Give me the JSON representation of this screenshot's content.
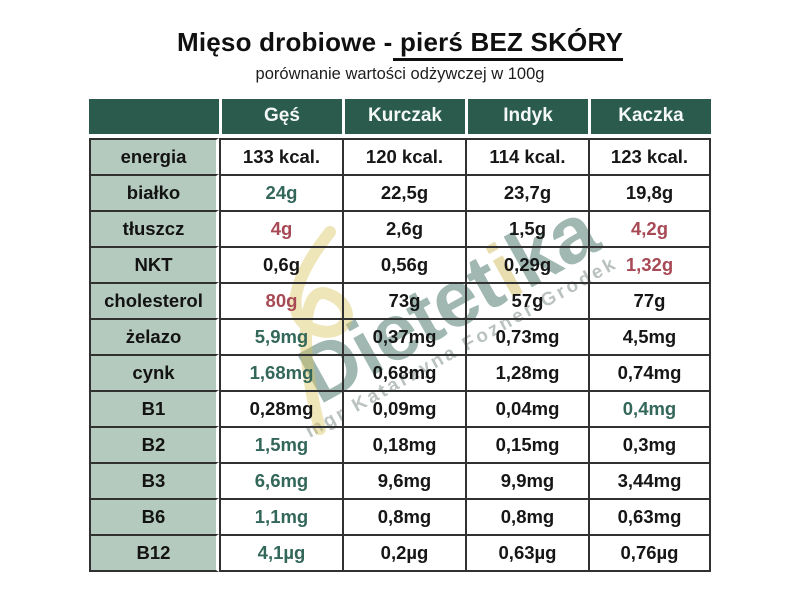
{
  "page": {
    "title_prefix": "Mięso drobiowe -",
    "title_underlined": " pierś BEZ SKÓRY",
    "subtitle": "porównanie wartości odżywczej w 100g"
  },
  "watermark": {
    "brand_part1": "Dietet",
    "brand_accent": "i",
    "brand_part2": "ka",
    "author": "mgr Katarzyna Fozner-Grodek"
  },
  "colors": {
    "header_bg": "#2a5b4d",
    "label_bg": "#b4cabe",
    "accent_green": "#33675a",
    "accent_red": "#a84a55",
    "border": "#313131",
    "watermark_teal": "#2f6355",
    "watermark_yellow": "#d8c25a"
  },
  "chart_data": {
    "type": "table",
    "title": "Mięso drobiowe - pierś BEZ SKÓRY",
    "subtitle": "porównanie wartości odżywczej w 100g",
    "columns": [
      "Gęś",
      "Kurczak",
      "Indyk",
      "Kaczka"
    ],
    "rows": [
      {
        "label": "energia",
        "values": [
          {
            "text": "133 kcal."
          },
          {
            "text": "120 kcal."
          },
          {
            "text": "114 kcal."
          },
          {
            "text": "123 kcal."
          }
        ]
      },
      {
        "label": "białko",
        "values": [
          {
            "text": "24g",
            "color": "green"
          },
          {
            "text": "22,5g"
          },
          {
            "text": "23,7g"
          },
          {
            "text": "19,8g"
          }
        ]
      },
      {
        "label": "tłuszcz",
        "values": [
          {
            "text": "4g",
            "color": "red"
          },
          {
            "text": "2,6g"
          },
          {
            "text": "1,5g"
          },
          {
            "text": "4,2g",
            "color": "red"
          }
        ]
      },
      {
        "label": "NKT",
        "values": [
          {
            "text": "0,6g"
          },
          {
            "text": "0,56g"
          },
          {
            "text": "0,29g"
          },
          {
            "text": "1,32g",
            "color": "red"
          }
        ]
      },
      {
        "label": "cholesterol",
        "values": [
          {
            "text": "80g",
            "color": "red"
          },
          {
            "text": "73g"
          },
          {
            "text": "57g"
          },
          {
            "text": "77g"
          }
        ]
      },
      {
        "label": "żelazo",
        "values": [
          {
            "text": "5,9mg",
            "color": "green"
          },
          {
            "text": "0,37mg"
          },
          {
            "text": "0,73mg"
          },
          {
            "text": "4,5mg"
          }
        ]
      },
      {
        "label": "cynk",
        "values": [
          {
            "text": "1,68mg",
            "color": "green"
          },
          {
            "text": "0,68mg"
          },
          {
            "text": "1,28mg"
          },
          {
            "text": "0,74mg"
          }
        ]
      },
      {
        "label": "B1",
        "values": [
          {
            "text": "0,28mg"
          },
          {
            "text": "0,09mg"
          },
          {
            "text": "0,04mg"
          },
          {
            "text": "0,4mg",
            "color": "green"
          }
        ]
      },
      {
        "label": "B2",
        "values": [
          {
            "text": "1,5mg",
            "color": "green"
          },
          {
            "text": "0,18mg"
          },
          {
            "text": "0,15mg"
          },
          {
            "text": "0,3mg"
          }
        ]
      },
      {
        "label": "B3",
        "values": [
          {
            "text": "6,6mg",
            "color": "green"
          },
          {
            "text": "9,6mg"
          },
          {
            "text": "9,9mg"
          },
          {
            "text": "3,44mg"
          }
        ]
      },
      {
        "label": "B6",
        "values": [
          {
            "text": "1,1mg",
            "color": "green"
          },
          {
            "text": "0,8mg"
          },
          {
            "text": "0,8mg"
          },
          {
            "text": "0,63mg"
          }
        ]
      },
      {
        "label": "B12",
        "values": [
          {
            "text": "4,1µg",
            "color": "green"
          },
          {
            "text": "0,2µg"
          },
          {
            "text": "0,63µg"
          },
          {
            "text": "0,76µg"
          }
        ]
      }
    ]
  }
}
